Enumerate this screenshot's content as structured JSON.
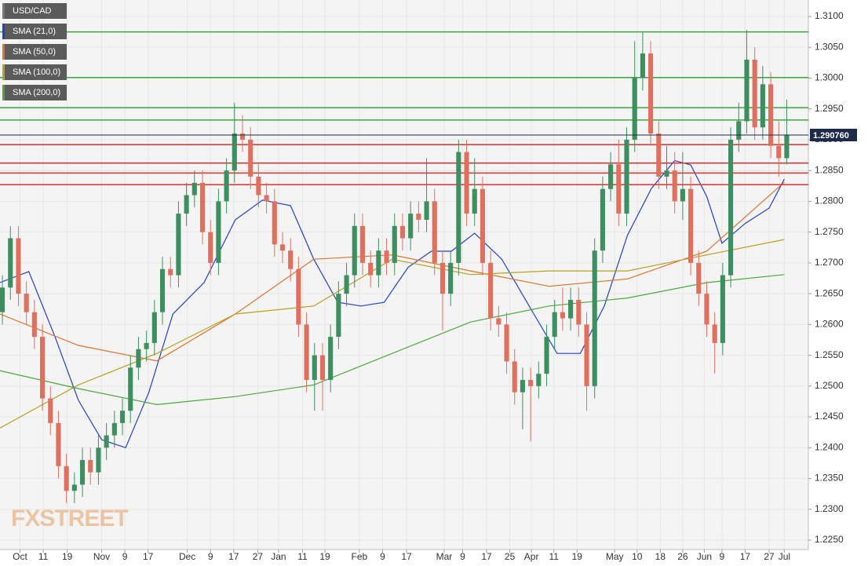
{
  "chart_data": {
    "type": "candlestick",
    "title": "USD/CAD",
    "watermark": "FXSTREET",
    "ylim": [
      1.22347,
      1.31268
    ],
    "xlim": [
      -0.3,
      100.7
    ],
    "yticks": [
      {
        "value": 1.31,
        "label": "1.3100"
      },
      {
        "value": 1.305,
        "label": "1.3050"
      },
      {
        "value": 1.3,
        "label": "1.3000"
      },
      {
        "value": 1.295,
        "label": "1.2950"
      },
      {
        "value": 1.29,
        "label": "1.2900"
      },
      {
        "value": 1.285,
        "label": "1.2850"
      },
      {
        "value": 1.28,
        "label": "1.2800"
      },
      {
        "value": 1.275,
        "label": "1.2750"
      },
      {
        "value": 1.27,
        "label": "1.2700"
      },
      {
        "value": 1.265,
        "label": "1.2650"
      },
      {
        "value": 1.26,
        "label": "1.2600"
      },
      {
        "value": 1.255,
        "label": "1.2550"
      },
      {
        "value": 1.25,
        "label": "1.2500"
      },
      {
        "value": 1.245,
        "label": "1.2450"
      },
      {
        "value": 1.24,
        "label": "1.2400"
      },
      {
        "value": 1.235,
        "label": "1.2350"
      },
      {
        "value": 1.23,
        "label": "1.2300"
      },
      {
        "value": 1.225,
        "label": "1.2250"
      }
    ],
    "xticks": [
      {
        "value": 2.2,
        "label": "Oct"
      },
      {
        "value": 5.1,
        "label": "11"
      },
      {
        "value": 8.1,
        "label": "19"
      },
      {
        "value": 12.4,
        "label": "Nov"
      },
      {
        "value": 15.3,
        "label": "9"
      },
      {
        "value": 18.2,
        "label": "17"
      },
      {
        "value": 23.1,
        "label": "Dec"
      },
      {
        "value": 26,
        "label": "9"
      },
      {
        "value": 28.9,
        "label": "17"
      },
      {
        "value": 31.9,
        "label": "27"
      },
      {
        "value": 34.5,
        "label": "Jan"
      },
      {
        "value": 37.5,
        "label": "11"
      },
      {
        "value": 40.3,
        "label": "19"
      },
      {
        "value": 44.6,
        "label": "Feb"
      },
      {
        "value": 47.5,
        "label": "9"
      },
      {
        "value": 50.5,
        "label": "17"
      },
      {
        "value": 55.2,
        "label": "Mar"
      },
      {
        "value": 57.5,
        "label": "9"
      },
      {
        "value": 60.5,
        "label": "17"
      },
      {
        "value": 63.4,
        "label": "25"
      },
      {
        "value": 66.1,
        "label": "Apr"
      },
      {
        "value": 68.9,
        "label": "11"
      },
      {
        "value": 71.8,
        "label": "19"
      },
      {
        "value": 76.5,
        "label": "May"
      },
      {
        "value": 79.3,
        "label": "10"
      },
      {
        "value": 82.2,
        "label": "18"
      },
      {
        "value": 85,
        "label": "26"
      },
      {
        "value": 87.7,
        "label": "Jun"
      },
      {
        "value": 89.9,
        "label": "9"
      },
      {
        "value": 92.8,
        "label": "17"
      },
      {
        "value": 95.8,
        "label": "27"
      },
      {
        "value": 97.7,
        "label": "Jul"
      }
    ],
    "up_color": "#3d8f5f",
    "down_color": "#e0705e",
    "candles": [
      [
        1.262,
        1.268,
        1.26,
        1.266
      ],
      [
        1.266,
        1.276,
        1.264,
        1.274
      ],
      [
        1.274,
        1.276,
        1.263,
        1.265
      ],
      [
        1.265,
        1.267,
        1.26,
        1.262
      ],
      [
        1.262,
        1.264,
        1.256,
        1.258
      ],
      [
        1.258,
        1.26,
        1.246,
        1.248
      ],
      [
        1.248,
        1.25,
        1.242,
        1.244
      ],
      [
        1.244,
        1.246,
        1.235,
        1.237
      ],
      [
        1.237,
        1.239,
        1.231,
        1.233
      ],
      [
        1.233,
        1.236,
        1.231,
        1.234
      ],
      [
        1.234,
        1.24,
        1.232,
        1.238
      ],
      [
        1.238,
        1.24,
        1.234,
        1.236
      ],
      [
        1.236,
        1.242,
        1.234,
        1.24
      ],
      [
        1.24,
        1.244,
        1.238,
        1.242
      ],
      [
        1.242,
        1.246,
        1.24,
        1.244
      ],
      [
        1.244,
        1.248,
        1.242,
        1.246
      ],
      [
        1.246,
        1.255,
        1.244,
        1.253
      ],
      [
        1.253,
        1.258,
        1.251,
        1.256
      ],
      [
        1.256,
        1.259,
        1.254,
        1.257
      ],
      [
        1.257,
        1.264,
        1.255,
        1.262
      ],
      [
        1.262,
        1.271,
        1.26,
        1.269
      ],
      [
        1.269,
        1.271,
        1.266,
        1.268
      ],
      [
        1.268,
        1.28,
        1.266,
        1.278
      ],
      [
        1.278,
        1.283,
        1.276,
        1.281
      ],
      [
        1.281,
        1.285,
        1.279,
        1.283
      ],
      [
        1.283,
        1.285,
        1.273,
        1.275
      ],
      [
        1.275,
        1.277,
        1.268,
        1.27
      ],
      [
        1.27,
        1.282,
        1.268,
        1.28
      ],
      [
        1.28,
        1.287,
        1.278,
        1.285
      ],
      [
        1.285,
        1.296,
        1.283,
        1.291
      ],
      [
        1.291,
        1.294,
        1.288,
        1.29
      ],
      [
        1.29,
        1.292,
        1.282,
        1.284
      ],
      [
        1.284,
        1.286,
        1.279,
        1.281
      ],
      [
        1.281,
        1.283,
        1.278,
        1.28
      ],
      [
        1.28,
        1.282,
        1.271,
        1.273
      ],
      [
        1.273,
        1.275,
        1.27,
        1.272
      ],
      [
        1.272,
        1.274,
        1.267,
        1.269
      ],
      [
        1.269,
        1.271,
        1.258,
        1.26
      ],
      [
        1.26,
        1.262,
        1.249,
        1.251
      ],
      [
        1.251,
        1.257,
        1.246,
        1.255
      ],
      [
        1.255,
        1.257,
        1.246,
        1.251
      ],
      [
        1.251,
        1.26,
        1.249,
        1.258
      ],
      [
        1.258,
        1.267,
        1.256,
        1.265
      ],
      [
        1.265,
        1.27,
        1.263,
        1.268
      ],
      [
        1.268,
        1.278,
        1.266,
        1.276
      ],
      [
        1.276,
        1.278,
        1.268,
        1.27
      ],
      [
        1.27,
        1.272,
        1.266,
        1.268
      ],
      [
        1.268,
        1.274,
        1.266,
        1.272
      ],
      [
        1.272,
        1.274,
        1.268,
        1.27
      ],
      [
        1.27,
        1.278,
        1.268,
        1.276
      ],
      [
        1.276,
        1.278,
        1.272,
        1.274
      ],
      [
        1.274,
        1.28,
        1.272,
        1.278
      ],
      [
        1.278,
        1.28,
        1.275,
        1.277
      ],
      [
        1.277,
        1.287,
        1.275,
        1.28
      ],
      [
        1.28,
        1.282,
        1.268,
        1.27
      ],
      [
        1.27,
        1.272,
        1.259,
        1.265
      ],
      [
        1.265,
        1.272,
        1.263,
        1.27
      ],
      [
        1.27,
        1.29,
        1.268,
        1.288
      ],
      [
        1.288,
        1.29,
        1.276,
        1.278
      ],
      [
        1.278,
        1.287,
        1.276,
        1.282
      ],
      [
        1.282,
        1.284,
        1.268,
        1.27
      ],
      [
        1.27,
        1.272,
        1.259,
        1.261
      ],
      [
        1.261,
        1.263,
        1.258,
        1.26
      ],
      [
        1.26,
        1.262,
        1.252,
        1.254
      ],
      [
        1.254,
        1.256,
        1.247,
        1.249
      ],
      [
        1.249,
        1.253,
        1.243,
        1.251
      ],
      [
        1.251,
        1.253,
        1.241,
        1.25
      ],
      [
        1.25,
        1.254,
        1.248,
        1.252
      ],
      [
        1.252,
        1.26,
        1.25,
        1.258
      ],
      [
        1.258,
        1.264,
        1.256,
        1.262
      ],
      [
        1.262,
        1.266,
        1.259,
        1.261
      ],
      [
        1.261,
        1.266,
        1.259,
        1.264
      ],
      [
        1.264,
        1.266,
        1.258,
        1.26
      ],
      [
        1.26,
        1.262,
        1.246,
        1.25
      ],
      [
        1.25,
        1.274,
        1.248,
        1.272
      ],
      [
        1.272,
        1.284,
        1.27,
        1.282
      ],
      [
        1.282,
        1.288,
        1.28,
        1.286
      ],
      [
        1.286,
        1.29,
        1.276,
        1.278
      ],
      [
        1.278,
        1.292,
        1.276,
        1.29
      ],
      [
        1.29,
        1.306,
        1.288,
        1.3
      ],
      [
        1.3,
        1.3075,
        1.298,
        1.304
      ],
      [
        1.304,
        1.306,
        1.289,
        1.291
      ],
      [
        1.291,
        1.293,
        1.282,
        1.284
      ],
      [
        1.284,
        1.289,
        1.282,
        1.285
      ],
      [
        1.285,
        1.288,
        1.278,
        1.28
      ],
      [
        1.28,
        1.288,
        1.277,
        1.282
      ],
      [
        1.282,
        1.284,
        1.268,
        1.27
      ],
      [
        1.27,
        1.272,
        1.263,
        1.265
      ],
      [
        1.265,
        1.267,
        1.258,
        1.26
      ],
      [
        1.26,
        1.262,
        1.252,
        1.257
      ],
      [
        1.257,
        1.27,
        1.255,
        1.268
      ],
      [
        1.268,
        1.292,
        1.266,
        1.29
      ],
      [
        1.29,
        1.296,
        1.288,
        1.293
      ],
      [
        1.293,
        1.3078,
        1.291,
        1.303
      ],
      [
        1.303,
        1.305,
        1.29,
        1.292
      ],
      [
        1.292,
        1.302,
        1.29,
        1.299
      ],
      [
        1.299,
        1.301,
        1.287,
        1.289
      ],
      [
        1.289,
        1.293,
        1.284,
        1.287
      ],
      [
        1.287,
        1.2965,
        1.286,
        1.2907
      ]
    ],
    "series": [
      {
        "name": "SMA (21,0)",
        "color": "#2040d0",
        "x": [
          -0.3,
          3.3,
          6.6,
          9.5,
          12.4,
          15.4,
          18.3,
          21.3,
          25.2,
          29.1,
          32.5,
          36,
          38.9,
          41.9,
          44.8,
          47.7,
          50.7,
          53.6,
          56.1,
          59,
          62.4,
          66.4,
          69.3,
          72.2,
          75.2,
          78.1,
          81.1,
          84,
          86,
          88,
          89.9,
          92.8,
          95.8,
          97.7
        ],
        "values": [
          1.2668,
          1.2686,
          1.2579,
          1.2477,
          1.2413,
          1.24,
          1.249,
          1.2617,
          1.2668,
          1.277,
          1.2802,
          1.2793,
          1.2706,
          1.2636,
          1.263,
          1.2636,
          1.2693,
          1.2719,
          1.2719,
          1.2748,
          1.2706,
          1.2617,
          1.2553,
          1.2553,
          1.263,
          1.2745,
          1.2821,
          1.2866,
          1.2859,
          1.2808,
          1.2732,
          1.2764,
          1.2789,
          1.2836
        ]
      },
      {
        "name": "SMA (50,0)",
        "color": "#e0732a",
        "x": [
          -0.3,
          9.5,
          19.3,
          29.1,
          38.9,
          48.7,
          58.5,
          68.3,
          78.1,
          88,
          97.7
        ],
        "values": [
          1.2617,
          1.2566,
          1.2541,
          1.2617,
          1.2706,
          1.2713,
          1.2687,
          1.2662,
          1.2674,
          1.2719,
          1.2831
        ]
      },
      {
        "name": "SMA (100,0)",
        "color": "#b8a020",
        "x": [
          -0.3,
          9.5,
          19.3,
          29.1,
          38.9,
          48.7,
          58.5,
          68.3,
          78.1,
          88,
          97.7
        ],
        "values": [
          1.2432,
          1.2502,
          1.2553,
          1.2617,
          1.263,
          1.2706,
          1.2681,
          1.2687,
          1.2687,
          1.2713,
          1.2738
        ]
      },
      {
        "name": "SMA (200,0)",
        "color": "#4aa83a",
        "x": [
          -0.3,
          9.5,
          19.3,
          29.1,
          38.9,
          48.7,
          58.5,
          68.3,
          78.1,
          88,
          97.7
        ],
        "values": [
          1.2525,
          1.2496,
          1.247,
          1.2483,
          1.2502,
          1.2553,
          1.2604,
          1.263,
          1.2643,
          1.2668,
          1.2681
        ]
      }
    ],
    "levels": [
      {
        "value": 1.3075,
        "color": "#3aa83a"
      },
      {
        "value": 1.3001,
        "color": "#3aa83a"
      },
      {
        "value": 1.2952,
        "color": "#3aa83a"
      },
      {
        "value": 1.2932,
        "color": "#3aa83a"
      },
      {
        "value": 1.2892,
        "color": "#e03030"
      },
      {
        "value": 1.2862,
        "color": "#e03030"
      },
      {
        "value": 1.2846,
        "color": "#e03030"
      },
      {
        "value": 1.2827,
        "color": "#e03030"
      }
    ],
    "last_price": {
      "value": 1.29076,
      "label": "1.290760"
    }
  }
}
